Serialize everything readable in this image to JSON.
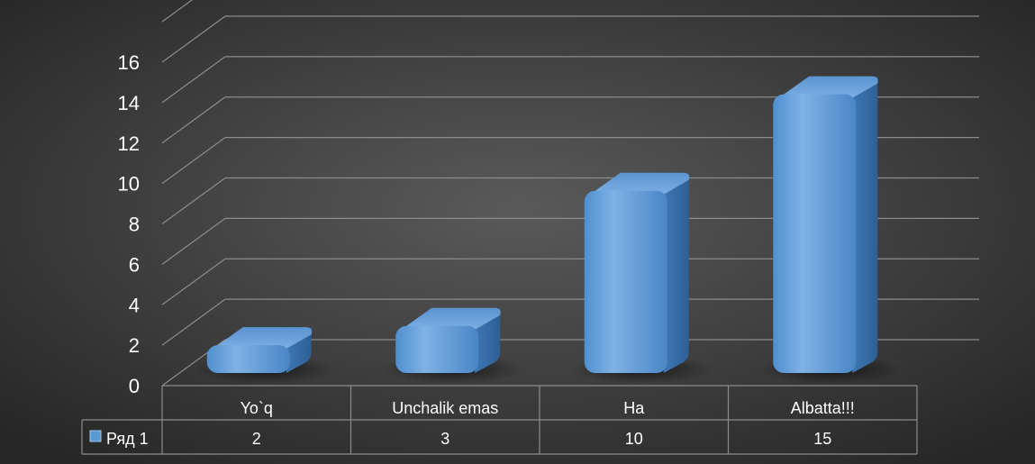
{
  "chart_data": {
    "type": "bar",
    "categories": [
      "Yo`q",
      "Unchalik emas",
      "Ha",
      "Albatta!!!"
    ],
    "series": [
      {
        "name": "Ряд 1",
        "values": [
          2,
          3,
          10,
          15
        ]
      }
    ],
    "y_ticks": [
      "0",
      "2",
      "4",
      "6",
      "8",
      "10",
      "12",
      "14",
      "16"
    ],
    "ylim": [
      0,
      16
    ],
    "grid": true,
    "legend": "data-table",
    "data_table_values": [
      "2",
      "3",
      "10",
      "15"
    ]
  },
  "colors": {
    "background_center": "#5a5a5a",
    "background_edge": "#262626",
    "bar_front": "#5b9bd5",
    "bar_side": "#3a70a8",
    "bar_top": "#7fb0e3",
    "grid": "#8c8c8c",
    "text": "#ffffff"
  }
}
